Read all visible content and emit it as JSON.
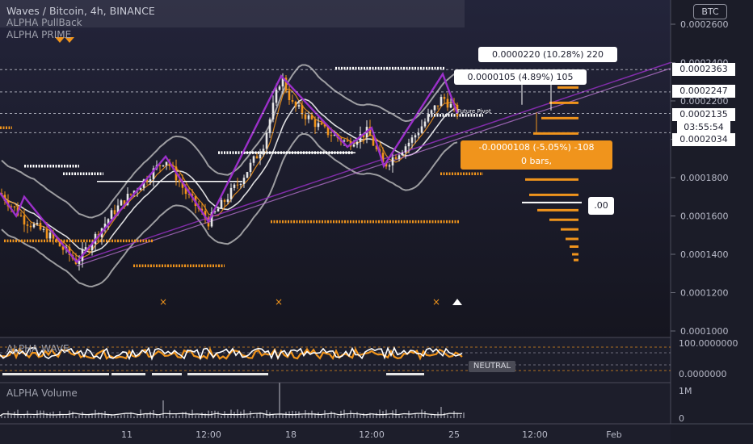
{
  "header": {
    "title": "Waves / Bitcoin, 4h, BINANCE",
    "indicator_1": "ALPHA PullBack",
    "indicator_2": "ALPHA PRIME",
    "currency": "BTC"
  },
  "panes": {
    "wave_title": "ALPHA WAVE",
    "wave_state": "NEUTRAL",
    "volume_title": "ALPHA Volume",
    "wave_ticks": [
      "100.0000000",
      "0.0000000"
    ],
    "volume_ticks": [
      "1M",
      "0"
    ]
  },
  "annotations": {
    "measure_top": "0.0000220 (10.28%) 220",
    "measure_mid": "0.0000105 (4.89%) 105",
    "measure_down_1": "-0.0000108 (-5.05%) -108",
    "measure_down_2": "0 bars,",
    "small_box": ".00",
    "future_label": "Future Pivot"
  },
  "price_tags": {
    "p1": "0.0002363",
    "p2": "0.0002247",
    "p3": "0.0002135",
    "p3_timer": "03:55:54",
    "p4": "0.0002034"
  },
  "colors": {
    "background": "#1d1e2b",
    "up_candle": "#e6e6e6",
    "down_candle": "#f0941c",
    "bands": "#c8c8c8",
    "zigzag": "#9b30c9",
    "support": "#f0941c",
    "pivot": "#ffffff",
    "measure_down_bg": "#f0941c"
  },
  "chart_data": {
    "type": "candlestick",
    "title": "Waves / Bitcoin, 4h, BINANCE",
    "currency": "BTC",
    "y_axis": {
      "min": 0.0001,
      "max": 0.00026,
      "ticks": [
        "0.0002600",
        "0.0002400",
        "0.0002200",
        "0.0002000",
        "0.0001800",
        "0.0001600",
        "0.0001400",
        "0.0001200",
        "0.0001000"
      ]
    },
    "x_axis": {
      "ticks": [
        "11",
        "12:00",
        "18",
        "12:00",
        "25",
        "12:00",
        "Feb"
      ]
    },
    "last_price": 0.0002135,
    "highlighted_levels": [
      0.0002363,
      0.0002247,
      0.0002135,
      0.0002034
    ],
    "swing_points": [
      {
        "label": "low",
        "x": "9 Jan",
        "y": 0.000136
      },
      {
        "label": "high",
        "x": "13 Jan",
        "y": 0.00019
      },
      {
        "label": "low",
        "x": "15 Jan",
        "y": 0.000157
      },
      {
        "label": "high",
        "x": "18 Jan",
        "y": 0.000233
      },
      {
        "label": "low",
        "x": "21 Jan",
        "y": 0.000186
      },
      {
        "label": "high",
        "x": "25 Jan",
        "y": 0.000234
      },
      {
        "label": "last",
        "x": "25 Jan",
        "y": 0.0002135
      }
    ]
  }
}
